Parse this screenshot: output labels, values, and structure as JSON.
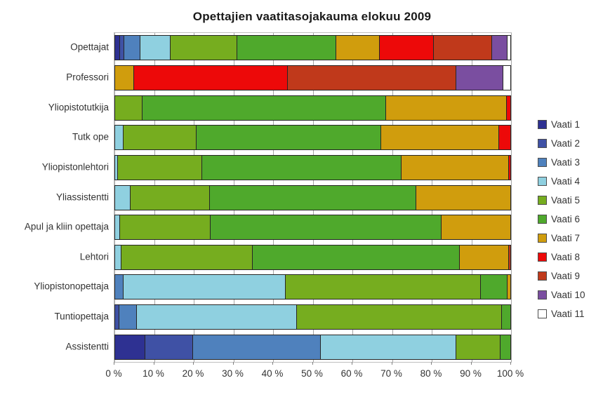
{
  "chart_data": {
    "type": "bar",
    "orientation": "horizontal",
    "stacked": true,
    "stacked_total_percent": 100,
    "title": "Opettajien vaatitasojakauma elokuu 2009",
    "categories": [
      "Opettajat",
      "Professori",
      "Yliopistotutkija",
      "Tutk ope",
      "Yliopistonlehtori",
      "Yliassistentti",
      "Apul ja kliin opettaja",
      "Lehtori",
      "Yliopistonopettaja",
      "Tuntiopettaja",
      "Assistentti"
    ],
    "series": [
      {
        "name": "Vaati 1",
        "color": "#2e3192",
        "values": [
          1.0,
          0,
          0,
          0,
          0,
          0,
          0,
          0,
          0,
          0,
          7.5
        ]
      },
      {
        "name": "Vaati 2",
        "color": "#3f51a5",
        "values": [
          1.2,
          0,
          0,
          0,
          0,
          0,
          0,
          0,
          0,
          0.8,
          12.0
        ]
      },
      {
        "name": "Vaati 3",
        "color": "#4f81bd",
        "values": [
          4.0,
          0,
          0,
          0,
          0,
          0,
          0,
          0,
          2.0,
          4.6,
          32.3
        ]
      },
      {
        "name": "Vaati 4",
        "color": "#8fd0e0",
        "values": [
          7.6,
          0,
          0,
          2.0,
          0.5,
          3.7,
          1.0,
          1.5,
          41.0,
          40.4,
          34.4
        ]
      },
      {
        "name": "Vaati 5",
        "color": "#76ad1f",
        "values": [
          17.0,
          0,
          6.8,
          18.4,
          21.3,
          20.1,
          23.0,
          33.1,
          49.4,
          51.9,
          11.1
        ]
      },
      {
        "name": "Vaati 6",
        "color": "#4fa92c",
        "values": [
          25.0,
          0,
          61.5,
          46.8,
          50.5,
          52.2,
          58.5,
          52.5,
          6.8,
          2.3,
          2.7
        ]
      },
      {
        "name": "Vaati 7",
        "color": "#d09d0d",
        "values": [
          11.0,
          4.6,
          30.7,
          29.8,
          27.2,
          24.0,
          17.5,
          12.4,
          0.8,
          0,
          0
        ]
      },
      {
        "name": "Vaati 8",
        "color": "#ed0909",
        "values": [
          13.6,
          39.0,
          1.0,
          3.0,
          0.5,
          0,
          0,
          0,
          0,
          0,
          0
        ]
      },
      {
        "name": "Vaati 9",
        "color": "#c0391b",
        "values": [
          14.8,
          42.6,
          0,
          0,
          0,
          0,
          0,
          0.5,
          0,
          0,
          0
        ]
      },
      {
        "name": "Vaati 10",
        "color": "#7a4ea0",
        "values": [
          4.0,
          11.8,
          0,
          0,
          0,
          0,
          0,
          0,
          0,
          0,
          0
        ]
      },
      {
        "name": "Vaati 11",
        "color": "#ffffff",
        "values": [
          0.8,
          2.0,
          0,
          0,
          0,
          0,
          0,
          0,
          0,
          0,
          0
        ]
      }
    ],
    "x_axis": {
      "min": 0,
      "max": 100,
      "tick_labels": [
        "0 %",
        "10 %",
        "20 %",
        "30 %",
        "40 %",
        "50 %",
        "60 %",
        "70 %",
        "80 %",
        "90 %",
        "100 %"
      ]
    },
    "legend": {
      "position": "right",
      "entries": [
        "Vaati 1",
        "Vaati 2",
        "Vaati 3",
        "Vaati 4",
        "Vaati 5",
        "Vaati 6",
        "Vaati 7",
        "Vaati 8",
        "Vaati 9",
        "Vaati 10",
        "Vaati 11"
      ]
    },
    "grid": true,
    "colors": {
      "gridline": "#a6a6a6",
      "plot_border": "#bfbfbf",
      "bar_border": "#262626",
      "text": "#333333"
    }
  }
}
